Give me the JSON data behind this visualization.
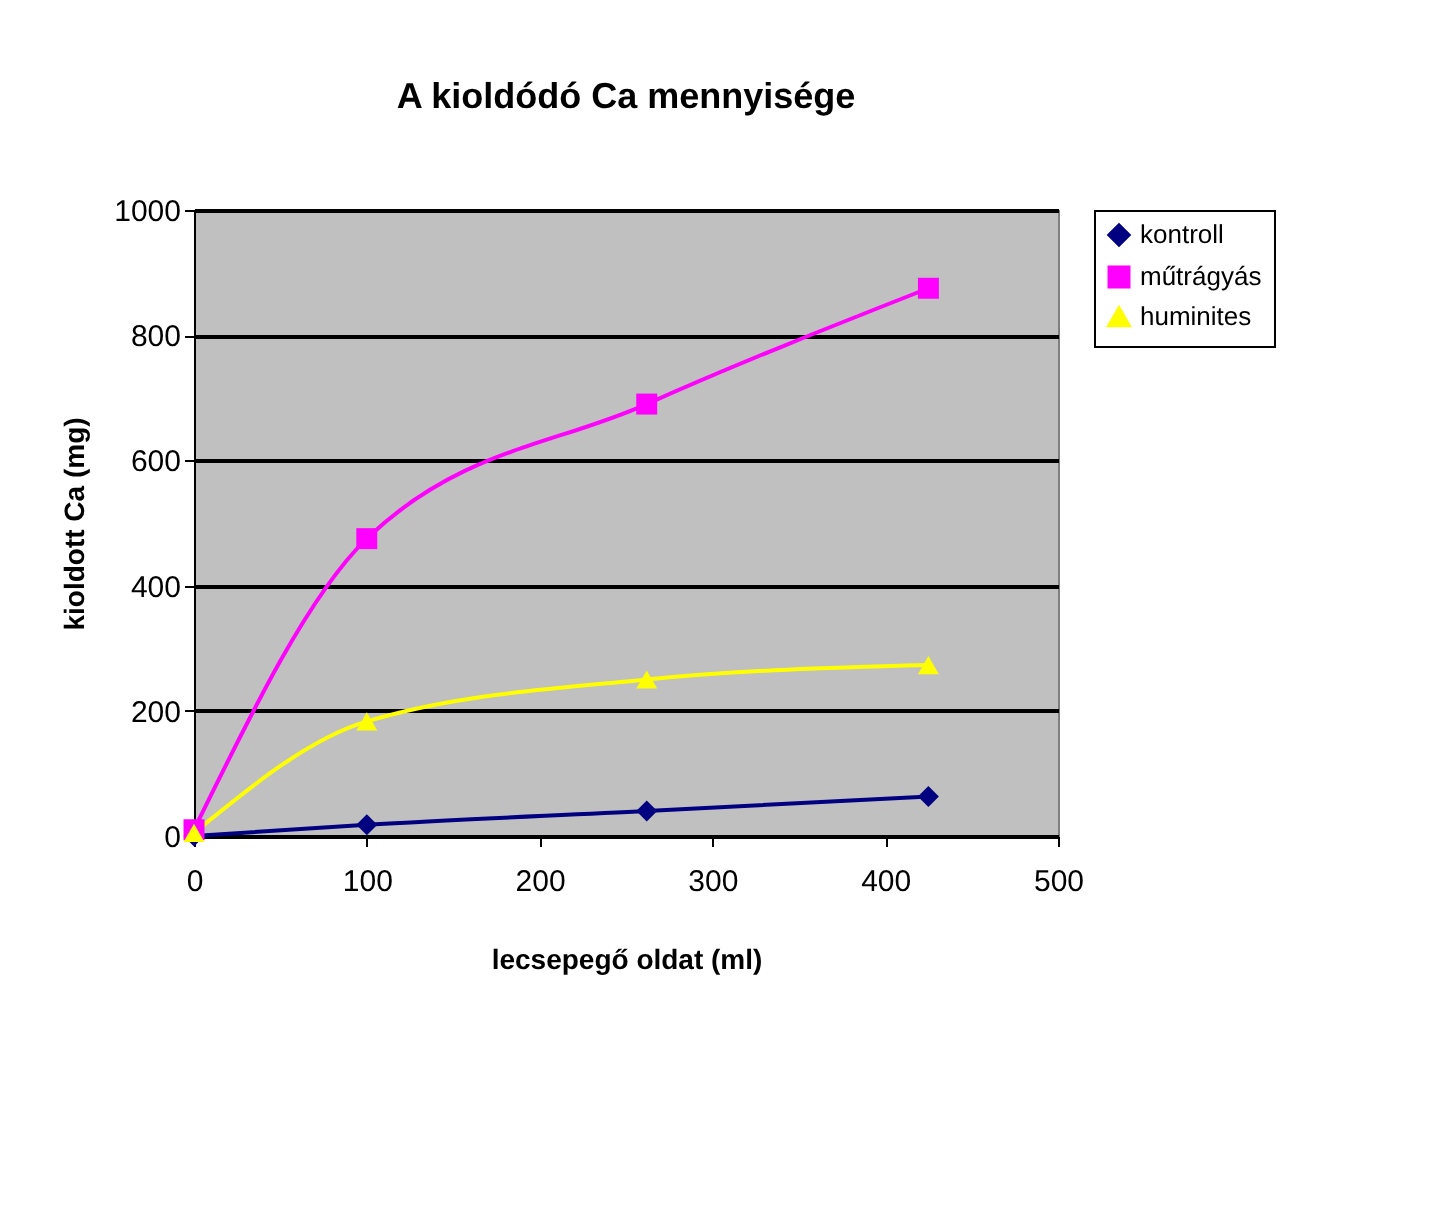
{
  "chart_data": {
    "type": "line",
    "title": "A kioldódó Ca mennyisége",
    "xlabel": "lecsepegő oldat (ml)",
    "ylabel": "kioldott Ca (mg)",
    "x": [
      0,
      100,
      262,
      425
    ],
    "series": [
      {
        "name": "kontroll",
        "color": "#000080",
        "marker": "diamond",
        "values": [
          0,
          18,
          40,
          63
        ]
      },
      {
        "name": "műtrágyás",
        "color": "#ff00ff",
        "marker": "square",
        "values": [
          10,
          475,
          690,
          875
        ]
      },
      {
        "name": "huminites",
        "color": "#ffff00",
        "marker": "triangle",
        "values": [
          5,
          183,
          250,
          273
        ]
      }
    ],
    "xlim": [
      0,
      500
    ],
    "xticks": [
      0,
      100,
      200,
      300,
      400,
      500
    ],
    "ylim": [
      0,
      1000
    ],
    "yticks": [
      0,
      200,
      400,
      600,
      800,
      1000
    ],
    "grid": "y",
    "legend": "right",
    "line_style": "solid"
  }
}
